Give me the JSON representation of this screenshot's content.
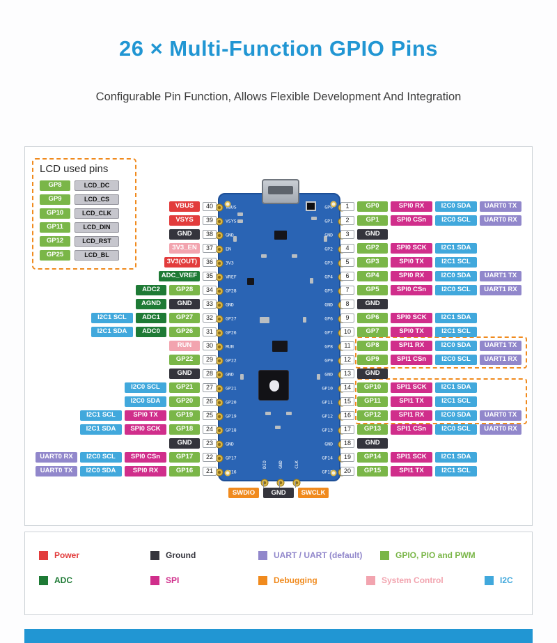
{
  "page": {
    "title": "26 × Multi-Function GPIO Pins",
    "subtitle": "Configurable Pin Function, Allows Flexible Development And Integration"
  },
  "colors": {
    "accent": "#2196d3",
    "power": "#e23c3c",
    "ground": "#34343c",
    "uart": "#9187cb",
    "gpio": "#7ab648",
    "adc": "#1e7a35",
    "spi": "#d02e8b",
    "debug": "#f08a1d",
    "sysctl": "#f2a4af",
    "i2c": "#41a8dc",
    "board": "#2a64b4",
    "pad": "#ddb94a",
    "lcdfunc": "#c6c6cd"
  },
  "lcd_box": {
    "title": "LCD used pins",
    "pairs": [
      {
        "gpio": "GP8",
        "func": "LCD_DC"
      },
      {
        "gpio": "GP9",
        "func": "LCD_CS"
      },
      {
        "gpio": "GP10",
        "func": "LCD_CLK"
      },
      {
        "gpio": "GP11",
        "func": "LCD_DIN"
      },
      {
        "gpio": "GP12",
        "func": "LCD_RST"
      },
      {
        "gpio": "GP25",
        "func": "LCD_BL"
      }
    ]
  },
  "left_pins": [
    {
      "num": 40,
      "labels": [
        {
          "text": "VBUS",
          "type": "power"
        }
      ]
    },
    {
      "num": 39,
      "labels": [
        {
          "text": "VSYS",
          "type": "power"
        }
      ]
    },
    {
      "num": 38,
      "labels": [
        {
          "text": "GND",
          "type": "ground"
        }
      ]
    },
    {
      "num": 37,
      "labels": [
        {
          "text": "3V3_EN",
          "type": "sysctl"
        }
      ]
    },
    {
      "num": 36,
      "labels": [
        {
          "text": "3V3(OUT)",
          "type": "power"
        }
      ]
    },
    {
      "num": 35,
      "labels": [
        {
          "text": "ADC_VREF",
          "type": "adc"
        }
      ]
    },
    {
      "num": 34,
      "labels": [
        {
          "text": "ADC2",
          "type": "adc"
        },
        {
          "text": "GP28",
          "type": "gpio"
        }
      ]
    },
    {
      "num": 33,
      "labels": [
        {
          "text": "AGND",
          "type": "adc"
        },
        {
          "text": "GND",
          "type": "ground"
        }
      ]
    },
    {
      "num": 32,
      "labels": [
        {
          "text": "I2C1 SCL",
          "type": "i2c"
        },
        {
          "text": "ADC1",
          "type": "adc"
        },
        {
          "text": "GP27",
          "type": "gpio"
        }
      ]
    },
    {
      "num": 31,
      "labels": [
        {
          "text": "I2C1 SDA",
          "type": "i2c"
        },
        {
          "text": "ADC0",
          "type": "adc"
        },
        {
          "text": "GP26",
          "type": "gpio"
        }
      ]
    },
    {
      "num": 30,
      "labels": [
        {
          "text": "RUN",
          "type": "sysctl"
        }
      ]
    },
    {
      "num": 29,
      "labels": [
        {
          "text": "GP22",
          "type": "gpio"
        }
      ]
    },
    {
      "num": 28,
      "labels": [
        {
          "text": "GND",
          "type": "ground"
        }
      ]
    },
    {
      "num": 27,
      "labels": [
        {
          "text": "I2C0 SCL",
          "type": "i2c"
        },
        {
          "text": "GP21",
          "type": "gpio"
        }
      ]
    },
    {
      "num": 26,
      "labels": [
        {
          "text": "I2C0 SDA",
          "type": "i2c"
        },
        {
          "text": "GP20",
          "type": "gpio"
        }
      ]
    },
    {
      "num": 25,
      "labels": [
        {
          "text": "I2C1 SCL",
          "type": "i2c"
        },
        {
          "text": "SPI0 TX",
          "type": "spi"
        },
        {
          "text": "GP19",
          "type": "gpio"
        }
      ]
    },
    {
      "num": 24,
      "labels": [
        {
          "text": "I2C1 SDA",
          "type": "i2c"
        },
        {
          "text": "SPI0 SCK",
          "type": "spi"
        },
        {
          "text": "GP18",
          "type": "gpio"
        }
      ]
    },
    {
      "num": 23,
      "labels": [
        {
          "text": "GND",
          "type": "ground"
        }
      ]
    },
    {
      "num": 22,
      "labels": [
        {
          "text": "UART0 RX",
          "type": "uart"
        },
        {
          "text": "I2C0 SCL",
          "type": "i2c"
        },
        {
          "text": "SPI0 CSn",
          "type": "spi"
        },
        {
          "text": "GP17",
          "type": "gpio"
        }
      ]
    },
    {
      "num": 21,
      "labels": [
        {
          "text": "UART0 TX",
          "type": "uart"
        },
        {
          "text": "I2C0 SDA",
          "type": "i2c"
        },
        {
          "text": "SPI0 RX",
          "type": "spi"
        },
        {
          "text": "GP16",
          "type": "gpio"
        }
      ]
    }
  ],
  "right_pins": [
    {
      "num": 1,
      "labels": [
        {
          "text": "GP0",
          "type": "gpio"
        },
        {
          "text": "SPI0 RX",
          "type": "spi"
        },
        {
          "text": "I2C0 SDA",
          "type": "i2c"
        },
        {
          "text": "UART0 TX",
          "type": "uart"
        }
      ]
    },
    {
      "num": 2,
      "labels": [
        {
          "text": "GP1",
          "type": "gpio"
        },
        {
          "text": "SPI0 CSn",
          "type": "spi"
        },
        {
          "text": "I2C0 SCL",
          "type": "i2c"
        },
        {
          "text": "UART0 RX",
          "type": "uart"
        }
      ]
    },
    {
      "num": 3,
      "labels": [
        {
          "text": "GND",
          "type": "ground"
        }
      ]
    },
    {
      "num": 4,
      "labels": [
        {
          "text": "GP2",
          "type": "gpio"
        },
        {
          "text": "SPI0 SCK",
          "type": "spi"
        },
        {
          "text": "I2C1 SDA",
          "type": "i2c"
        }
      ]
    },
    {
      "num": 5,
      "labels": [
        {
          "text": "GP3",
          "type": "gpio"
        },
        {
          "text": "SPI0 TX",
          "type": "spi"
        },
        {
          "text": "I2C1 SCL",
          "type": "i2c"
        }
      ]
    },
    {
      "num": 6,
      "labels": [
        {
          "text": "GP4",
          "type": "gpio"
        },
        {
          "text": "SPI0 RX",
          "type": "spi"
        },
        {
          "text": "I2C0 SDA",
          "type": "i2c"
        },
        {
          "text": "UART1 TX",
          "type": "uart"
        }
      ]
    },
    {
      "num": 7,
      "labels": [
        {
          "text": "GP5",
          "type": "gpio"
        },
        {
          "text": "SPI0 CSn",
          "type": "spi"
        },
        {
          "text": "I2C0 SCL",
          "type": "i2c"
        },
        {
          "text": "UART1 RX",
          "type": "uart"
        }
      ]
    },
    {
      "num": 8,
      "labels": [
        {
          "text": "GND",
          "type": "ground"
        }
      ]
    },
    {
      "num": 9,
      "labels": [
        {
          "text": "GP6",
          "type": "gpio"
        },
        {
          "text": "SPI0 SCK",
          "type": "spi"
        },
        {
          "text": "I2C1 SDA",
          "type": "i2c"
        }
      ]
    },
    {
      "num": 10,
      "labels": [
        {
          "text": "GP7",
          "type": "gpio"
        },
        {
          "text": "SPI0 TX",
          "type": "spi"
        },
        {
          "text": "I2C1 SCL",
          "type": "i2c"
        }
      ]
    },
    {
      "num": 11,
      "labels": [
        {
          "text": "GP8",
          "type": "gpio"
        },
        {
          "text": "SPI1 RX",
          "type": "spi"
        },
        {
          "text": "I2C0 SDA",
          "type": "i2c"
        },
        {
          "text": "UART1 TX",
          "type": "uart"
        }
      ]
    },
    {
      "num": 12,
      "labels": [
        {
          "text": "GP9",
          "type": "gpio"
        },
        {
          "text": "SPI1 CSn",
          "type": "spi"
        },
        {
          "text": "I2C0 SCL",
          "type": "i2c"
        },
        {
          "text": "UART1 RX",
          "type": "uart"
        }
      ]
    },
    {
      "num": 13,
      "labels": [
        {
          "text": "GND",
          "type": "ground"
        }
      ]
    },
    {
      "num": 14,
      "labels": [
        {
          "text": "GP10",
          "type": "gpio"
        },
        {
          "text": "SPI1 SCK",
          "type": "spi"
        },
        {
          "text": "I2C1 SDA",
          "type": "i2c"
        }
      ]
    },
    {
      "num": 15,
      "labels": [
        {
          "text": "GP11",
          "type": "gpio"
        },
        {
          "text": "SPI1 TX",
          "type": "spi"
        },
        {
          "text": "I2C1 SCL",
          "type": "i2c"
        }
      ]
    },
    {
      "num": 16,
      "labels": [
        {
          "text": "GP12",
          "type": "gpio"
        },
        {
          "text": "SPI1 RX",
          "type": "spi"
        },
        {
          "text": "I2C0 SDA",
          "type": "i2c"
        },
        {
          "text": "UART0 TX",
          "type": "uart"
        }
      ]
    },
    {
      "num": 17,
      "labels": [
        {
          "text": "GP13",
          "type": "gpio"
        },
        {
          "text": "SPI1 CSn",
          "type": "spi"
        },
        {
          "text": "I2C0 SCL",
          "type": "i2c"
        },
        {
          "text": "UART0 RX",
          "type": "uart"
        }
      ]
    },
    {
      "num": 18,
      "labels": [
        {
          "text": "GND",
          "type": "ground"
        }
      ]
    },
    {
      "num": 19,
      "labels": [
        {
          "text": "GP14",
          "type": "gpio"
        },
        {
          "text": "SPI1 SCK",
          "type": "spi"
        },
        {
          "text": "I2C1 SDA",
          "type": "i2c"
        }
      ]
    },
    {
      "num": 20,
      "labels": [
        {
          "text": "GP15",
          "type": "gpio"
        },
        {
          "text": "SPI1 TX",
          "type": "spi"
        },
        {
          "text": "I2C1 SCL",
          "type": "i2c"
        }
      ]
    }
  ],
  "board": {
    "left_silk": [
      "VBUS",
      "VSYS",
      "GND",
      "EN",
      "3V3",
      "VREF",
      "GP28",
      "GND",
      "GP27",
      "GP26",
      "RUN",
      "GP22",
      "GND",
      "GP21",
      "GP20",
      "GP19",
      "GP18",
      "GND",
      "GP17",
      "GP16"
    ],
    "right_silk": [
      "GP0",
      "GP1",
      "GND",
      "GP2",
      "GP3",
      "GP4",
      "GP5",
      "GND",
      "GP6",
      "GP7",
      "GP8",
      "GP9",
      "GND",
      "GP10",
      "GP11",
      "GP12",
      "GP13",
      "GND",
      "GP14",
      "GP15"
    ],
    "bottom_silk": [
      "DIO",
      "GND",
      "CLK"
    ]
  },
  "debug_pins": [
    {
      "text": "SWDIO",
      "type": "debug"
    },
    {
      "text": "GND",
      "type": "ground"
    },
    {
      "text": "SWCLK",
      "type": "debug"
    }
  ],
  "legend": {
    "rows": [
      [
        {
          "label": "Power",
          "type": "power"
        },
        {
          "label": "Ground",
          "type": "ground"
        },
        {
          "label": "UART / UART (default)",
          "type": "uart"
        },
        {
          "label": "GPIO, PIO and PWM",
          "type": "gpio"
        }
      ],
      [
        {
          "label": "ADC",
          "type": "adc"
        },
        {
          "label": "SPI",
          "type": "spi"
        },
        {
          "label": "Debugging",
          "type": "debug"
        },
        {
          "label": "System Control",
          "type": "sysctl"
        },
        {
          "label": "I2C",
          "type": "i2c"
        }
      ]
    ]
  }
}
